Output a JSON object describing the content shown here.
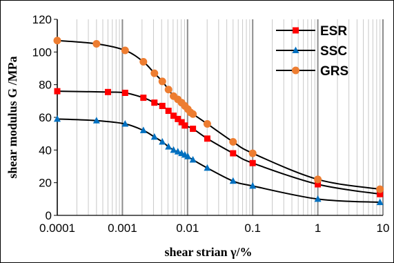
{
  "chart_data": {
    "type": "line",
    "title": "",
    "xlabel": "shear strian γ/%",
    "ylabel": "shear modulus G /MPa",
    "xscale": "log",
    "xlim": [
      0.0001,
      10
    ],
    "ylim": [
      0,
      120
    ],
    "x_ticks": [
      0.0001,
      0.001,
      0.01,
      0.1,
      1,
      10
    ],
    "x_tick_labels": [
      "0.0001",
      "0.001",
      "0.01",
      "0.1",
      "1",
      "10"
    ],
    "y_ticks": [
      0,
      20,
      40,
      60,
      80,
      100,
      120
    ],
    "y_tick_labels": [
      "0",
      "20",
      "40",
      "60",
      "80",
      "100",
      "120"
    ],
    "grid": "vertical log-spaced gridlines",
    "legend_position": "top-right",
    "series": [
      {
        "name": "ESR",
        "color": "#ff0000",
        "marker": "square",
        "x": [
          0.0001,
          0.0006,
          0.0011,
          0.0021,
          0.0031,
          0.0041,
          0.0051,
          0.0061,
          0.0071,
          0.0081,
          0.0091,
          0.0121,
          0.0201,
          0.05,
          0.1,
          1,
          9
        ],
        "y": [
          76,
          75.5,
          75,
          72,
          69,
          67,
          64,
          61,
          59,
          57,
          55,
          53,
          47,
          38,
          32,
          19,
          13
        ]
      },
      {
        "name": "SSC",
        "color": "#0070c0",
        "marker": "triangle",
        "x": [
          0.0001,
          0.0004,
          0.0011,
          0.0021,
          0.0031,
          0.0041,
          0.0051,
          0.0061,
          0.0071,
          0.0081,
          0.0091,
          0.0101,
          0.0121,
          0.0201,
          0.05,
          0.1,
          1,
          9
        ],
        "y": [
          59,
          58,
          56,
          52,
          48,
          45,
          42,
          40,
          39,
          38,
          37,
          36,
          34,
          29,
          21,
          18,
          10,
          8
        ]
      },
      {
        "name": "GRS",
        "color": "#ed7d31",
        "marker": "circle",
        "x": [
          0.0001,
          0.0004,
          0.0011,
          0.0021,
          0.0031,
          0.0041,
          0.0051,
          0.0061,
          0.0071,
          0.0081,
          0.0091,
          0.0101,
          0.0111,
          0.0121,
          0.0201,
          0.05,
          0.1,
          1,
          9
        ],
        "y": [
          107,
          105,
          101,
          94,
          87,
          82,
          77,
          73,
          71,
          69,
          67,
          65,
          63,
          62,
          56,
          45,
          38,
          22,
          16
        ]
      }
    ]
  }
}
